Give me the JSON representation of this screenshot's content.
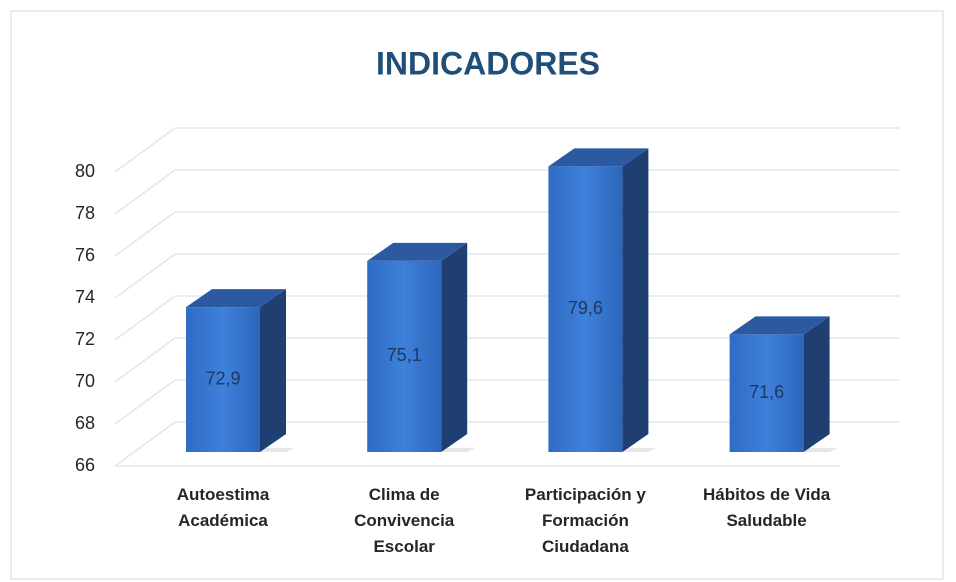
{
  "chart_data": {
    "type": "bar3d",
    "title": "INDICADORES",
    "categories": [
      "Autoestima Académica",
      "Clima de Convivencia Escolar",
      "Participación y Formación Ciudadana",
      "Hábitos de Vida Saludable"
    ],
    "values": [
      72.9,
      75.1,
      79.6,
      71.6
    ],
    "value_labels": [
      "72,9",
      "75,1",
      "79,6",
      "71,6"
    ],
    "color": "#3a78d0",
    "ylim": [
      66,
      80
    ],
    "yticks": [
      66,
      68,
      70,
      72,
      74,
      76,
      78,
      80
    ],
    "grid": true
  }
}
